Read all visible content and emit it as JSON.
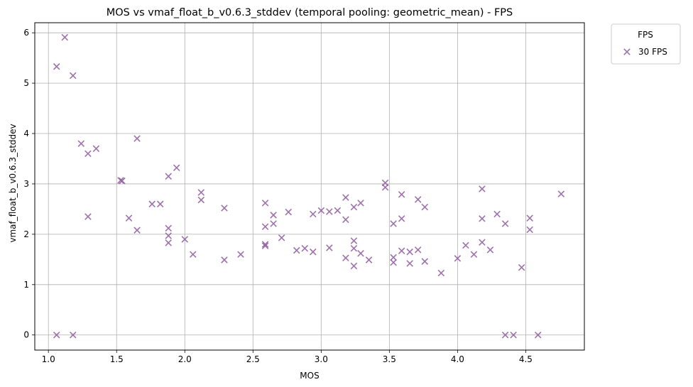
{
  "chart_data": {
    "type": "scatter",
    "title": "MOS vs vmaf_float_b_v0.6.3_stddev (temporal pooling: geometric_mean) - FPS",
    "xlabel": "MOS",
    "ylabel": "vmaf_float_b_v0.6.3_stddev",
    "xlim": [
      0.9,
      4.93
    ],
    "ylim": [
      -0.3,
      6.2
    ],
    "xticks": [
      1.0,
      1.5,
      2.0,
      2.5,
      3.0,
      3.5,
      4.0,
      4.5
    ],
    "xtick_labels": [
      "1.0",
      "1.5",
      "2.0",
      "2.5",
      "3.0",
      "3.5",
      "4.0",
      "4.5"
    ],
    "yticks": [
      0,
      1,
      2,
      3,
      4,
      5,
      6
    ],
    "ytick_labels": [
      "0",
      "1",
      "2",
      "3",
      "4",
      "5",
      "6"
    ],
    "grid": true,
    "legend": {
      "title": "FPS",
      "placement": "outside-top-right"
    },
    "series": [
      {
        "name": "30 FPS",
        "marker": "x",
        "color": "#8e5a9e",
        "points": [
          [
            1.06,
            5.33
          ],
          [
            1.12,
            5.91
          ],
          [
            1.18,
            5.15
          ],
          [
            1.24,
            3.8
          ],
          [
            1.29,
            3.6
          ],
          [
            1.35,
            3.7
          ],
          [
            1.29,
            2.35
          ],
          [
            1.06,
            0.0
          ],
          [
            1.18,
            0.0
          ],
          [
            1.53,
            3.07
          ],
          [
            1.54,
            3.06
          ],
          [
            1.65,
            3.9
          ],
          [
            1.59,
            2.32
          ],
          [
            1.65,
            2.08
          ],
          [
            1.76,
            2.6
          ],
          [
            1.82,
            2.6
          ],
          [
            1.88,
            3.15
          ],
          [
            1.94,
            3.32
          ],
          [
            1.88,
            2.12
          ],
          [
            1.88,
            1.97
          ],
          [
            1.88,
            1.83
          ],
          [
            2.0,
            1.9
          ],
          [
            2.06,
            1.6
          ],
          [
            2.12,
            2.83
          ],
          [
            2.12,
            2.68
          ],
          [
            2.29,
            2.52
          ],
          [
            2.29,
            1.49
          ],
          [
            2.41,
            1.6
          ],
          [
            2.59,
            2.62
          ],
          [
            2.59,
            2.15
          ],
          [
            2.59,
            1.8
          ],
          [
            2.59,
            1.77
          ],
          [
            2.65,
            2.38
          ],
          [
            2.65,
            2.21
          ],
          [
            2.71,
            1.93
          ],
          [
            2.76,
            2.44
          ],
          [
            2.82,
            1.68
          ],
          [
            2.88,
            1.72
          ],
          [
            2.94,
            2.4
          ],
          [
            2.94,
            1.65
          ],
          [
            3.0,
            2.47
          ],
          [
            3.06,
            2.45
          ],
          [
            3.06,
            1.73
          ],
          [
            3.12,
            2.47
          ],
          [
            3.18,
            2.73
          ],
          [
            3.18,
            2.29
          ],
          [
            3.18,
            1.53
          ],
          [
            3.24,
            2.54
          ],
          [
            3.24,
            1.87
          ],
          [
            3.24,
            1.72
          ],
          [
            3.24,
            1.37
          ],
          [
            3.29,
            2.62
          ],
          [
            3.29,
            1.62
          ],
          [
            3.35,
            1.49
          ],
          [
            3.47,
            3.02
          ],
          [
            3.47,
            2.93
          ],
          [
            3.53,
            2.21
          ],
          [
            3.53,
            1.54
          ],
          [
            3.53,
            1.44
          ],
          [
            3.59,
            2.79
          ],
          [
            3.59,
            2.31
          ],
          [
            3.59,
            1.67
          ],
          [
            3.65,
            1.65
          ],
          [
            3.65,
            1.42
          ],
          [
            3.71,
            2.69
          ],
          [
            3.71,
            1.69
          ],
          [
            3.76,
            2.54
          ],
          [
            3.76,
            1.46
          ],
          [
            3.88,
            1.23
          ],
          [
            4.0,
            1.52
          ],
          [
            4.06,
            1.78
          ],
          [
            4.12,
            1.6
          ],
          [
            4.18,
            2.9
          ],
          [
            4.18,
            2.31
          ],
          [
            4.18,
            1.84
          ],
          [
            4.24,
            1.69
          ],
          [
            4.29,
            2.4
          ],
          [
            4.35,
            2.21
          ],
          [
            4.35,
            0.0
          ],
          [
            4.41,
            0.0
          ],
          [
            4.47,
            1.34
          ],
          [
            4.53,
            2.32
          ],
          [
            4.53,
            2.09
          ],
          [
            4.59,
            0.0
          ],
          [
            4.76,
            2.8
          ]
        ]
      }
    ]
  }
}
